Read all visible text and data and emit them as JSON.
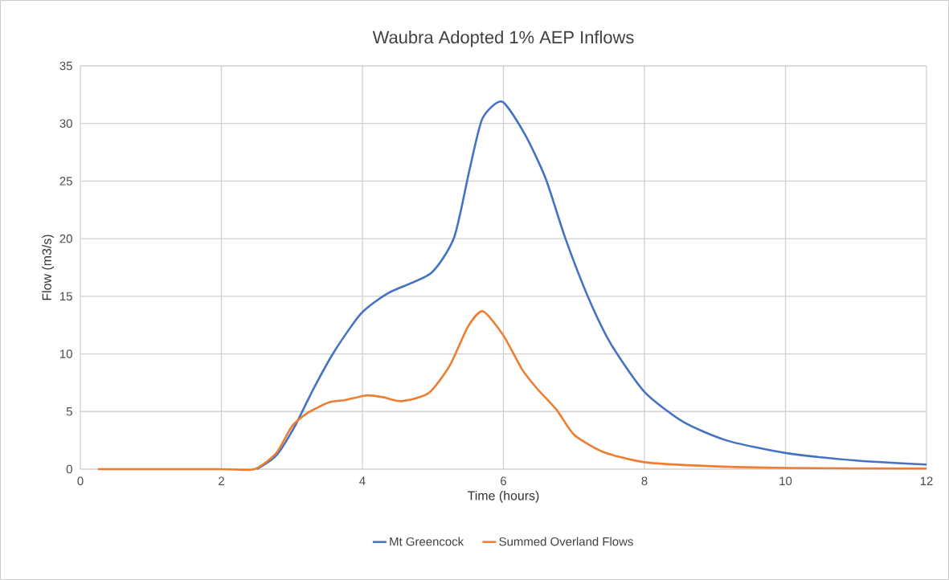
{
  "chart_data": {
    "type": "line",
    "title": "Waubra Adopted 1% AEP Inflows",
    "xlabel": "Time (hours)",
    "ylabel": "Flow (m3/s)",
    "xlim": [
      0,
      12
    ],
    "xticks": [
      0,
      2,
      4,
      6,
      8,
      10,
      12
    ],
    "ylim": [
      0,
      35
    ],
    "yticks": [
      0,
      5,
      10,
      15,
      20,
      25,
      30,
      35
    ],
    "grid": true,
    "legend": "bottom",
    "marker": "none",
    "line_style": "solid",
    "series": [
      {
        "name": "Mt Greencock",
        "color": "#4472c4",
        "x": [
          2.5,
          2.78,
          3.04,
          3.3,
          3.6,
          3.98,
          4.37,
          4.97,
          5.3,
          5.52,
          5.7,
          5.98,
          6.31,
          6.6,
          6.88,
          7.21,
          7.53,
          8.0,
          8.55,
          9.16,
          10,
          11,
          12
        ],
        "values": [
          0,
          1.2,
          3.7,
          6.9,
          10.2,
          13.5,
          15.3,
          17.0,
          20.1,
          26,
          30.4,
          31.9,
          29.0,
          25.2,
          20,
          14.8,
          10.8,
          6.7,
          4.1,
          2.5,
          1.4,
          0.75,
          0.4
        ]
      },
      {
        "name": "Summed Overland Flows",
        "color": "#ed7d31",
        "x": [
          0.25,
          1,
          2,
          2.47,
          2.78,
          3.0,
          3.23,
          3.53,
          3.76,
          4.06,
          4.29,
          4.56,
          4.94,
          5.24,
          5.5,
          5.71,
          6.0,
          6.27,
          6.49,
          6.76,
          7.0,
          7.41,
          8.0,
          8.96,
          10,
          12
        ],
        "values": [
          0,
          0,
          0,
          0,
          1.4,
          3.7,
          4.9,
          5.8,
          6.0,
          6.4,
          6.25,
          5.9,
          6.6,
          9.0,
          12.4,
          13.7,
          11.6,
          8.6,
          6.9,
          5.1,
          3.0,
          1.5,
          0.6,
          0.25,
          0.1,
          0.05
        ]
      }
    ]
  }
}
